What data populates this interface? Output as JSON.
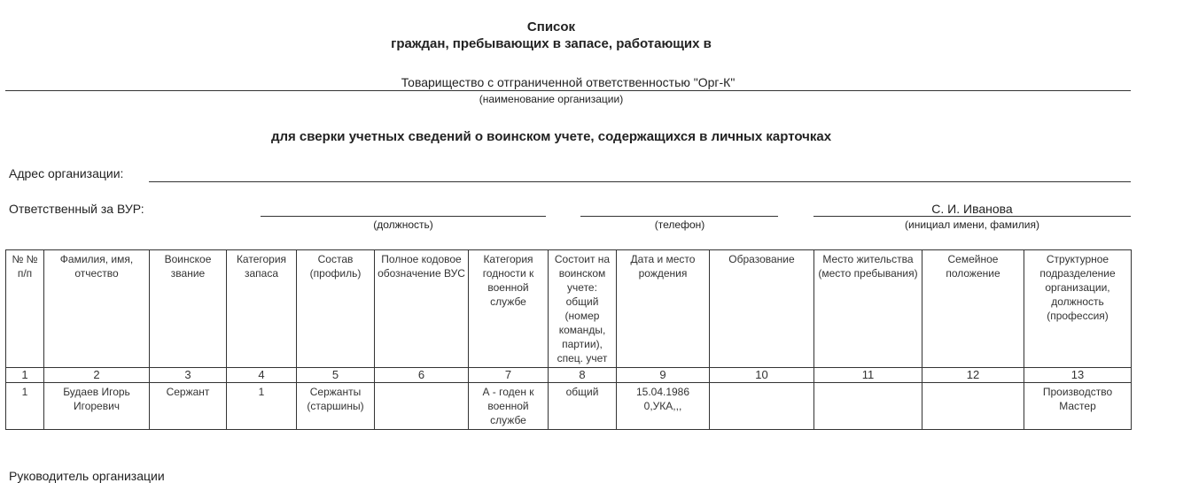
{
  "title": "Список",
  "subtitle": "граждан, пребывающих в запасе, работающих в",
  "organization": {
    "name": "Товарищество с отграниченной ответственностью \"Орг-К\"",
    "caption": "(наименование организации)"
  },
  "purpose": "для сверки учетных сведений о воинском учете, содержащихся в личных карточках",
  "address": {
    "label": "Адрес организации:",
    "value": ""
  },
  "responsible": {
    "label": "Ответственный за ВУР:",
    "position_caption": "(должность)",
    "phone_caption": "(телефон)",
    "name": "С. И. Иванова",
    "name_caption": "(инициал имени, фамилия)"
  },
  "table": {
    "headers": [
      "№ № п/п",
      "Фамилия, имя, отчество",
      "Воинское звание",
      "Категория запаса",
      "Состав (профиль)",
      "Полное кодовое обозначение ВУС",
      "Категория годности к военной службе",
      "Состоит на воинском учете: общий (номер команды, партии), спец. учет",
      "Дата и место рождения",
      "Образование",
      "Место жительства (место пребывания)",
      "Семейное положение",
      "Структурное подразделение организации, должность (профессия)"
    ],
    "numbers": [
      "1",
      "2",
      "3",
      "4",
      "5",
      "6",
      "7",
      "8",
      "9",
      "10",
      "11",
      "12",
      "13"
    ],
    "rows": [
      [
        "1",
        "Будаев Игорь Игоревич",
        "Сержант",
        "1",
        "Сержанты (старшины)",
        "",
        "А - годен к военной службе",
        "общий",
        "15.04.1986 0,УКА,,,",
        "",
        "",
        "",
        "Производство Мастер"
      ]
    ]
  },
  "footer": {
    "head_label": "Руководитель организации"
  }
}
